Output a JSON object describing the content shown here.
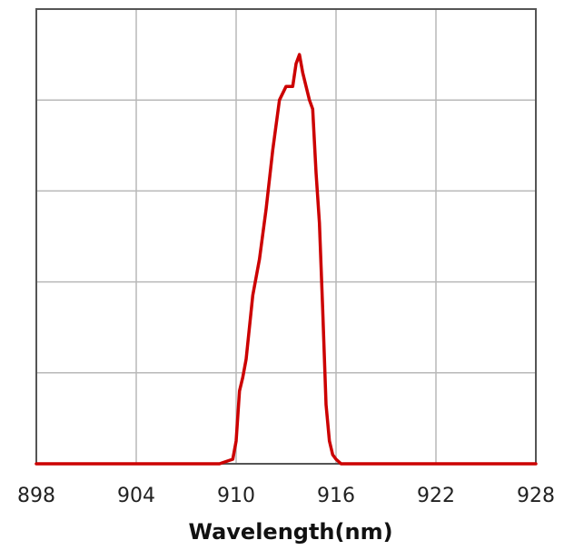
{
  "chart_data": {
    "type": "line",
    "title": "",
    "xlabel": "Wavelength(nm)",
    "ylabel": "",
    "xlim": [
      898,
      928
    ],
    "ylim": [
      0,
      1
    ],
    "x_ticks": [
      898,
      904,
      910,
      916,
      922,
      928
    ],
    "x_tick_labels": [
      "898",
      "904",
      "910",
      "916",
      "922",
      "928"
    ],
    "y_gridlines": [
      0.2,
      0.4,
      0.6,
      0.8
    ],
    "grid": true,
    "legend": "none",
    "series": [
      {
        "color": "#cc0000",
        "x": [
          898,
          909,
          909.8,
          910.0,
          910.2,
          910.4,
          910.6,
          911.0,
          911.4,
          911.8,
          912.2,
          912.6,
          913.0,
          913.4,
          913.6,
          913.8,
          914.0,
          914.2,
          914.4,
          914.6,
          914.8,
          915.0,
          915.2,
          915.4,
          915.6,
          915.8,
          916.0,
          916.3,
          928
        ],
        "y": [
          0.0,
          0.0,
          0.01,
          0.05,
          0.16,
          0.19,
          0.23,
          0.37,
          0.45,
          0.56,
          0.69,
          0.8,
          0.83,
          0.83,
          0.88,
          0.9,
          0.86,
          0.83,
          0.8,
          0.78,
          0.64,
          0.53,
          0.34,
          0.13,
          0.05,
          0.02,
          0.01,
          0.0,
          0.0
        ]
      }
    ]
  }
}
